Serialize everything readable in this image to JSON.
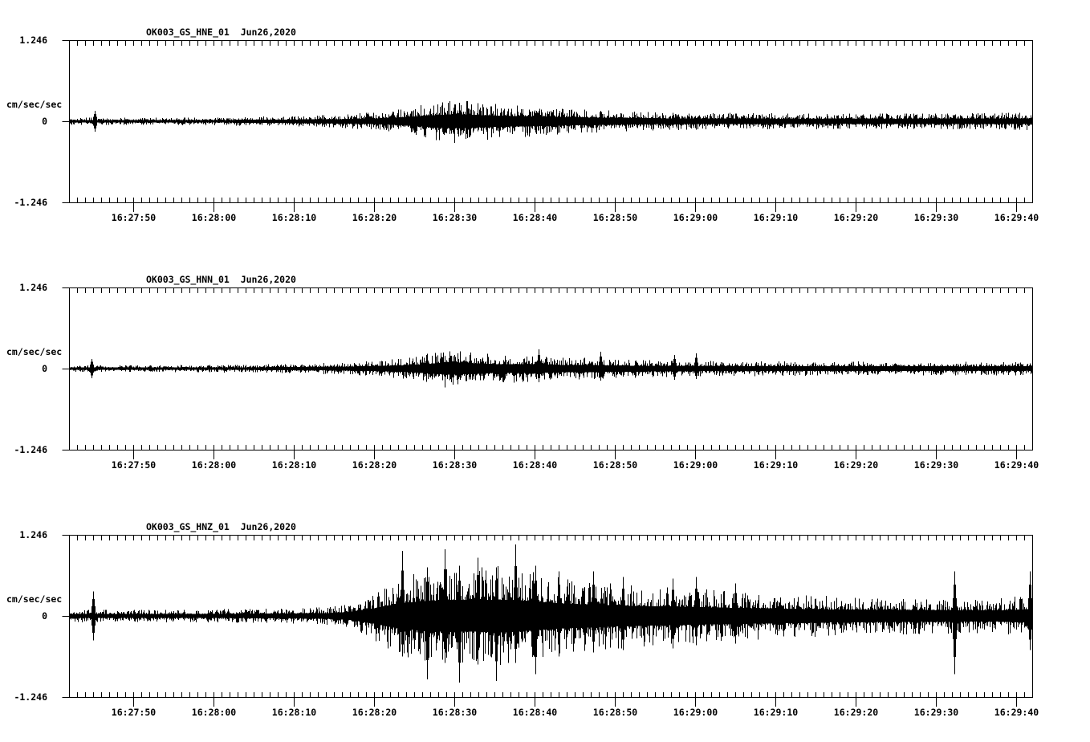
{
  "figure": {
    "background_color": "#ffffff",
    "ink_color": "#000000",
    "y_axis": {
      "top_label": "1.246",
      "zero_label": "0",
      "bottom_label": "-1.246",
      "unit_label": "cm/sec/sec"
    },
    "x_tick_labels": [
      "16:27:50",
      "16:28:00",
      "16:28:10",
      "16:28:20",
      "16:28:30",
      "16:28:40",
      "16:28:50",
      "16:29:00",
      "16:29:10",
      "16:29:20",
      "16:29:30",
      "16:29:40"
    ],
    "panels": [
      {
        "title": "OK003_GS_HNE_01  Jun26,2020"
      },
      {
        "title": "OK003_GS_HNN_01  Jun26,2020"
      },
      {
        "title": "OK003_GS_HNZ_01  Jun26,2020"
      }
    ]
  },
  "chart_data": [
    {
      "type": "line",
      "subtype": "seismogram-waveform",
      "title": "OK003_GS_HNE_01  Jun26,2020",
      "station": "OK003",
      "network": "GS",
      "channel": "HNE",
      "location": "01",
      "date": "Jun26,2020",
      "ylabel": "cm/sec/sec",
      "ylim": [
        -1.246,
        1.246
      ],
      "yticks": [
        1.246,
        0,
        -1.246
      ],
      "x_tick_labels": [
        "16:27:50",
        "16:28:00",
        "16:28:10",
        "16:28:20",
        "16:28:30",
        "16:28:40",
        "16:28:50",
        "16:29:00",
        "16:29:10",
        "16:29:20",
        "16:29:30",
        "16:29:40"
      ],
      "x_seconds_span": 120,
      "amplitude_envelope_fraction_of_fullscale": [
        [
          0,
          0.05
        ],
        [
          6,
          0.045
        ],
        [
          14,
          0.048
        ],
        [
          22,
          0.055
        ],
        [
          28,
          0.065
        ],
        [
          34,
          0.085
        ],
        [
          38,
          0.11
        ],
        [
          42,
          0.16
        ],
        [
          45,
          0.23
        ],
        [
          48,
          0.27
        ],
        [
          51,
          0.24
        ],
        [
          54,
          0.21
        ],
        [
          58,
          0.19
        ],
        [
          62,
          0.16
        ],
        [
          66,
          0.14
        ],
        [
          71,
          0.12
        ],
        [
          78,
          0.105
        ],
        [
          88,
          0.1
        ],
        [
          100,
          0.1
        ],
        [
          110,
          0.1
        ],
        [
          120,
          0.11
        ]
      ],
      "spikes_fraction_of_fullscale": [
        {
          "t": 3.2,
          "up": 0.13,
          "down": 0.13
        }
      ]
    },
    {
      "type": "line",
      "subtype": "seismogram-waveform",
      "title": "OK003_GS_HNN_01  Jun26,2020",
      "station": "OK003",
      "network": "GS",
      "channel": "HNN",
      "location": "01",
      "date": "Jun26,2020",
      "ylabel": "cm/sec/sec",
      "ylim": [
        -1.246,
        1.246
      ],
      "yticks": [
        1.246,
        0,
        -1.246
      ],
      "x_tick_labels": [
        "16:27:50",
        "16:28:00",
        "16:28:10",
        "16:28:20",
        "16:28:30",
        "16:28:40",
        "16:28:50",
        "16:29:00",
        "16:29:10",
        "16:29:20",
        "16:29:30",
        "16:29:40"
      ],
      "x_seconds_span": 120,
      "amplitude_envelope_fraction_of_fullscale": [
        [
          0,
          0.045
        ],
        [
          6,
          0.04
        ],
        [
          14,
          0.045
        ],
        [
          22,
          0.05
        ],
        [
          28,
          0.06
        ],
        [
          34,
          0.075
        ],
        [
          38,
          0.095
        ],
        [
          42,
          0.13
        ],
        [
          45,
          0.19
        ],
        [
          47,
          0.24
        ],
        [
          50,
          0.21
        ],
        [
          53,
          0.17
        ],
        [
          56,
          0.175
        ],
        [
          59,
          0.16
        ],
        [
          62,
          0.14
        ],
        [
          66,
          0.13
        ],
        [
          70,
          0.115
        ],
        [
          76,
          0.1
        ],
        [
          84,
          0.095
        ],
        [
          95,
          0.09
        ],
        [
          108,
          0.085
        ],
        [
          120,
          0.085
        ]
      ],
      "spikes_fraction_of_fullscale": [
        {
          "t": 2.8,
          "up": 0.12,
          "down": 0.12
        },
        {
          "t": 58.5,
          "up": 0.24,
          "down": 0.17
        },
        {
          "t": 66.2,
          "up": 0.21,
          "down": 0.15
        },
        {
          "t": 75.4,
          "up": 0.17,
          "down": 0.14
        },
        {
          "t": 78.1,
          "up": 0.19,
          "down": 0.13
        }
      ]
    },
    {
      "type": "line",
      "subtype": "seismogram-waveform",
      "title": "OK003_GS_HNZ_01  Jun26,2020",
      "station": "OK003",
      "network": "GS",
      "channel": "HNZ",
      "location": "01",
      "date": "Jun26,2020",
      "ylabel": "cm/sec/sec",
      "ylim": [
        -1.246,
        1.246
      ],
      "yticks": [
        1.246,
        0,
        -1.246
      ],
      "x_tick_labels": [
        "16:27:50",
        "16:28:00",
        "16:28:10",
        "16:28:20",
        "16:28:30",
        "16:28:40",
        "16:28:50",
        "16:29:00",
        "16:29:10",
        "16:29:20",
        "16:29:30",
        "16:29:40"
      ],
      "x_seconds_span": 120,
      "amplitude_envelope_fraction_of_fullscale": [
        [
          0,
          0.08
        ],
        [
          6,
          0.075
        ],
        [
          14,
          0.078
        ],
        [
          22,
          0.085
        ],
        [
          28,
          0.095
        ],
        [
          32,
          0.11
        ],
        [
          35,
          0.16
        ],
        [
          38,
          0.3
        ],
        [
          41,
          0.48
        ],
        [
          44,
          0.56
        ],
        [
          47,
          0.62
        ],
        [
          50,
          0.6
        ],
        [
          53,
          0.62
        ],
        [
          56,
          0.6
        ],
        [
          59,
          0.52
        ],
        [
          63,
          0.46
        ],
        [
          67,
          0.42
        ],
        [
          71,
          0.38
        ],
        [
          76,
          0.35
        ],
        [
          81,
          0.32
        ],
        [
          87,
          0.29
        ],
        [
          93,
          0.26
        ],
        [
          99,
          0.24
        ],
        [
          105,
          0.225
        ],
        [
          111,
          0.22
        ],
        [
          116,
          0.22
        ],
        [
          120,
          0.26
        ]
      ],
      "spikes_fraction_of_fullscale": [
        {
          "t": 3.0,
          "up": 0.3,
          "down": 0.3
        },
        {
          "t": 41.5,
          "up": 0.8,
          "down": 0.5
        },
        {
          "t": 44.6,
          "up": 0.6,
          "down": 0.78
        },
        {
          "t": 46.8,
          "up": 0.82,
          "down": 0.58
        },
        {
          "t": 48.6,
          "up": 0.62,
          "down": 0.82
        },
        {
          "t": 50.9,
          "up": 0.72,
          "down": 0.6
        },
        {
          "t": 53.2,
          "up": 0.6,
          "down": 0.8
        },
        {
          "t": 55.6,
          "up": 0.88,
          "down": 0.58
        },
        {
          "t": 58.1,
          "up": 0.62,
          "down": 0.72
        },
        {
          "t": 61.0,
          "up": 0.55,
          "down": 0.5
        },
        {
          "t": 65.3,
          "up": 0.55,
          "down": 0.45
        },
        {
          "t": 69.0,
          "up": 0.48,
          "down": 0.42
        },
        {
          "t": 75.2,
          "up": 0.46,
          "down": 0.4
        },
        {
          "t": 78.1,
          "up": 0.48,
          "down": 0.36
        },
        {
          "t": 83.0,
          "up": 0.4,
          "down": 0.34
        },
        {
          "t": 110.3,
          "up": 0.55,
          "down": 0.72
        },
        {
          "t": 119.7,
          "up": 0.55,
          "down": 0.42
        }
      ]
    }
  ]
}
